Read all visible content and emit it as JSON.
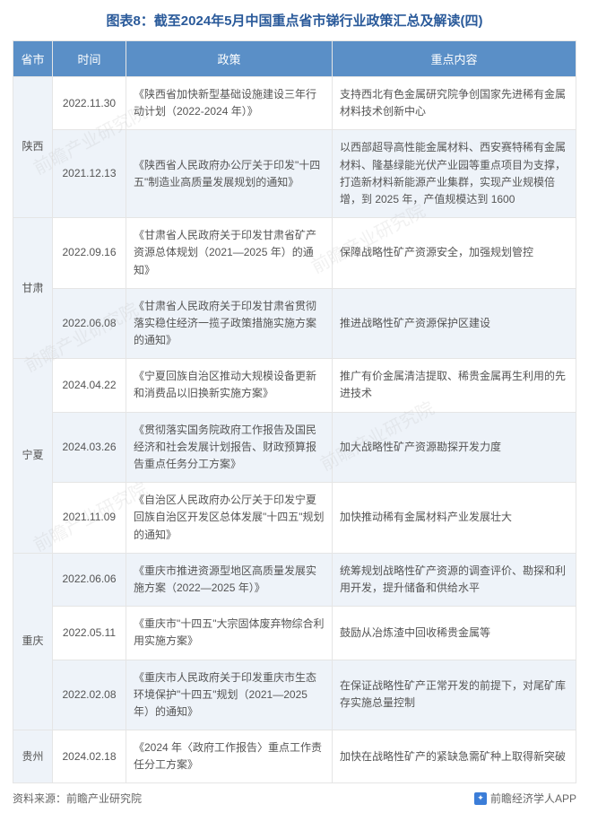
{
  "title": "图表8：截至2024年5月中国重点省市锑行业政策汇总及解读(四)",
  "headers": {
    "province": "省市",
    "date": "时间",
    "policy": "政策",
    "content": "重点内容"
  },
  "colors": {
    "header_bg": "#5a8fc7",
    "header_text": "#ffffff",
    "odd_bg": "#ffffff",
    "even_bg": "#eef3f9",
    "title_color": "#2a5a9a",
    "text_color": "#555555",
    "border_color": "#e5e5e5"
  },
  "provinces": [
    {
      "name": "陕西",
      "rows": [
        {
          "date": "2022.11.30",
          "policy": "《陕西省加快新型基础设施建设三年行动计划（2022-2024 年）》",
          "content": "支持西北有色金属研究院争创国家先进稀有金属材料技术创新中心"
        },
        {
          "date": "2021.12.13",
          "policy": "《陕西省人民政府办公厅关于印发\"十四五\"制造业高质量发展规划的通知》",
          "content": "以西部超导高性能金属材料、西安赛特稀有金属材料、隆基绿能光伏产业园等重点项目为支撑，打造新材料新能源产业集群，实现产业规模倍增，到 2025 年，产值规模达到 1600"
        }
      ]
    },
    {
      "name": "甘肃",
      "rows": [
        {
          "date": "2022.09.16",
          "policy": "《甘肃省人民政府关于印发甘肃省矿产资源总体规划（2021—2025 年）的通知》",
          "content": "保障战略性矿产资源安全，加强规划管控"
        },
        {
          "date": "2022.06.08",
          "policy": "《甘肃省人民政府关于印发甘肃省贯彻落实稳住经济一揽子政策措施实施方案的通知》",
          "content": "推进战略性矿产资源保护区建设"
        }
      ]
    },
    {
      "name": "宁夏",
      "rows": [
        {
          "date": "2024.04.22",
          "policy": "《宁夏回族自治区推动大规模设备更新和消费品以旧换新实施方案》",
          "content": "推广有价金属清洁提取、稀贵金属再生利用的先进技术"
        },
        {
          "date": "2024.03.26",
          "policy": "《贯彻落实国务院政府工作报告及国民经济和社会发展计划报告、财政预算报告重点任务分工方案》",
          "content": "加大战略性矿产资源勘探开发力度"
        },
        {
          "date": "2021.11.09",
          "policy": "《自治区人民政府办公厅关于印发宁夏回族自治区开发区总体发展\"十四五\"规划的通知》",
          "content": "加快推动稀有金属材料产业发展壮大"
        }
      ]
    },
    {
      "name": "重庆",
      "rows": [
        {
          "date": "2022.06.06",
          "policy": "《重庆市推进资源型地区高质量发展实施方案（2022—2025 年）》",
          "content": "统筹规划战略性矿产资源的调查评价、勘探和利用开发，提升储备和供给水平"
        },
        {
          "date": "2022.05.11",
          "policy": "《重庆市\"十四五\"大宗固体废弃物综合利用实施方案》",
          "content": "鼓励从冶炼渣中回收稀贵金属等"
        },
        {
          "date": "2022.02.08",
          "policy": "《重庆市人民政府关于印发重庆市生态环境保护\"十四五\"规划（2021—2025 年）的通知》",
          "content": "在保证战略性矿产正常开发的前提下，对尾矿库存实施总量控制"
        }
      ]
    },
    {
      "name": "贵州",
      "rows": [
        {
          "date": "2024.02.18",
          "policy": "《2024 年〈政府工作报告〉重点工作责任分工方案》",
          "content": "加快在战略性矿产的紧缺急需矿种上取得新突破"
        }
      ]
    }
  ],
  "footer": {
    "left": "资料来源：前瞻产业研究院",
    "right": "前瞻经济学人APP"
  },
  "watermark": "前瞻产业研究院"
}
